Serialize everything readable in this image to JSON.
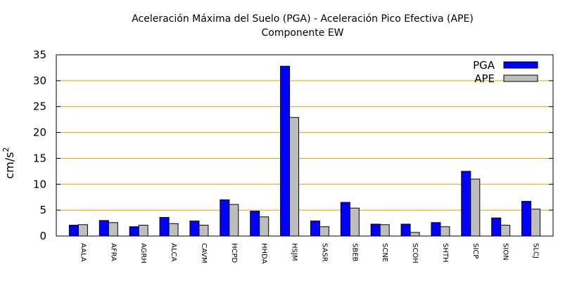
{
  "chart_data": {
    "type": "bar",
    "title": "Aceleración Máxima del Suelo (PGA) -  Aceleración Pico Efectiva (APE)",
    "subtitle": "Componente EW",
    "ylabel": "cm/s",
    "ylabel_exponent": "2",
    "xlabel": "",
    "ylim": [
      0,
      35
    ],
    "yticks": [
      0,
      5,
      10,
      15,
      20,
      25,
      30,
      35
    ],
    "grid": "horizontal",
    "legend_position": "top-right",
    "categories": [
      "AALA",
      "AFRA",
      "AGRH",
      "ALCA",
      "CAVM",
      "HCPD",
      "HHDA",
      "HSJM",
      "SASR",
      "SBEB",
      "SCNE",
      "SCOH",
      "SHTH",
      "SICP",
      "SION",
      "SLCJ"
    ],
    "series": [
      {
        "name": "PGA",
        "color": "#0000ff",
        "values": [
          2.1,
          3.0,
          1.8,
          3.6,
          2.9,
          7.0,
          4.8,
          32.8,
          2.9,
          6.5,
          2.3,
          2.3,
          2.6,
          12.5,
          3.5,
          6.7
        ]
      },
      {
        "name": "APE",
        "color": "#bebebe",
        "values": [
          2.2,
          2.6,
          2.1,
          2.4,
          2.1,
          6.1,
          3.7,
          22.9,
          1.8,
          5.4,
          2.2,
          0.7,
          1.8,
          11.0,
          2.1,
          5.2
        ]
      }
    ],
    "colors": {
      "grid": "#e0a000",
      "axis": "#000000"
    }
  }
}
